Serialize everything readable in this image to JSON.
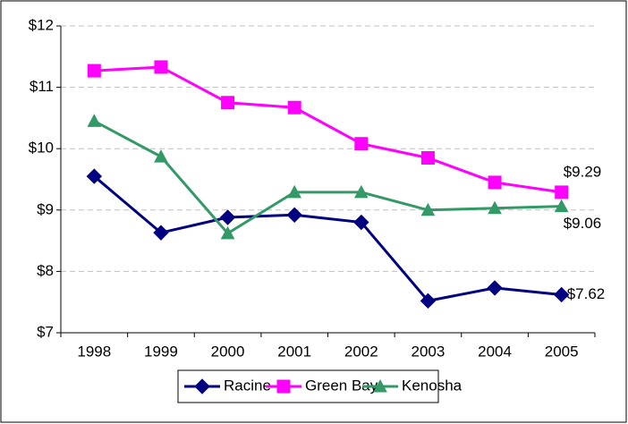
{
  "chart_data": {
    "type": "line",
    "categories": [
      "1998",
      "1999",
      "2000",
      "2001",
      "2002",
      "2003",
      "2004",
      "2005"
    ],
    "series": [
      {
        "name": "Racine",
        "color": "#000080",
        "marker": "diamond",
        "values": [
          9.55,
          8.63,
          8.88,
          8.92,
          8.8,
          7.52,
          7.73,
          7.62
        ],
        "value_labels": [
          null,
          null,
          null,
          null,
          null,
          null,
          null,
          "$7.62"
        ]
      },
      {
        "name": "Green Bay",
        "color": "#FF00FF",
        "marker": "square",
        "values": [
          11.27,
          11.33,
          10.75,
          10.67,
          10.08,
          9.85,
          9.45,
          9.29
        ],
        "value_labels": [
          null,
          null,
          null,
          null,
          null,
          null,
          null,
          "$9.29"
        ]
      },
      {
        "name": "Kenosha",
        "color": "#339966",
        "marker": "triangle",
        "values": [
          10.45,
          9.87,
          8.62,
          9.29,
          9.29,
          9.0,
          9.03,
          9.06
        ],
        "value_labels": [
          null,
          null,
          null,
          null,
          null,
          null,
          null,
          "$9.06"
        ]
      }
    ],
    "ylim": [
      7,
      12
    ],
    "yticks": [
      {
        "value": 7,
        "label": "$7"
      },
      {
        "value": 8,
        "label": "$8"
      },
      {
        "value": 9,
        "label": "$9"
      },
      {
        "value": 10,
        "label": "$10"
      },
      {
        "value": 11,
        "label": "$11"
      },
      {
        "value": 12,
        "label": "$12"
      }
    ],
    "grid": true,
    "legend": "bottom"
  }
}
